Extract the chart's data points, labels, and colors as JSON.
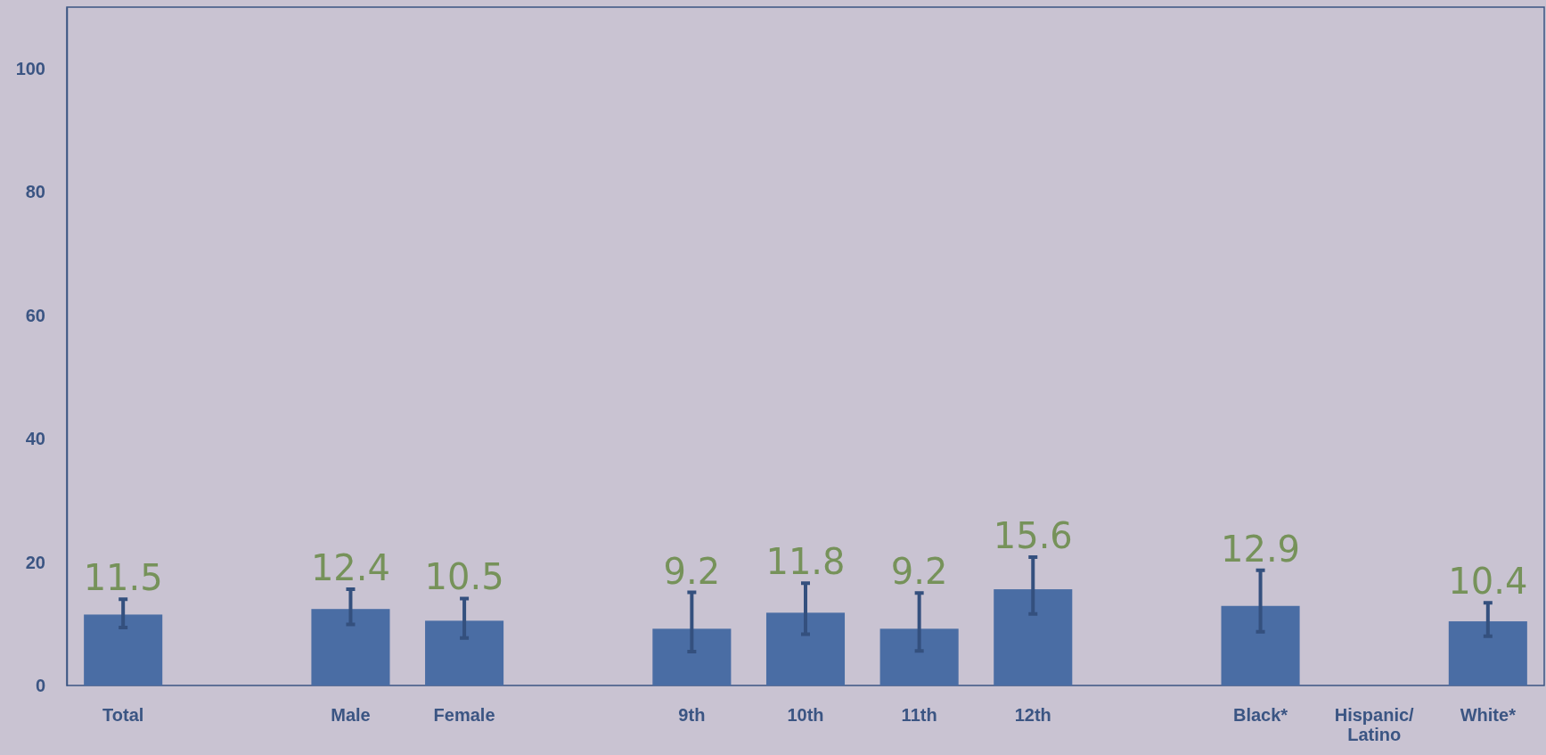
{
  "chart_data": {
    "type": "bar",
    "categories": [
      "Total",
      null,
      "Male",
      "Female",
      null,
      "9th",
      "10th",
      "11th",
      "12th",
      null,
      "Black*",
      "Hispanic/\nLatino",
      "White*"
    ],
    "values": [
      11.5,
      null,
      12.4,
      10.5,
      null,
      9.2,
      11.8,
      9.2,
      15.6,
      null,
      12.9,
      null,
      10.4
    ],
    "errors": [
      [
        9.4,
        14.0
      ],
      null,
      [
        9.9,
        15.6
      ],
      [
        7.7,
        14.1
      ],
      null,
      [
        5.5,
        15.1
      ],
      [
        8.3,
        16.6
      ],
      [
        5.6,
        15.0
      ],
      [
        11.6,
        20.8
      ],
      null,
      [
        8.7,
        18.7
      ],
      null,
      [
        8.0,
        13.4
      ]
    ],
    "color": "#4a6da4",
    "data_labels": true,
    "ylim": [
      0,
      110
    ],
    "yticks": [
      0,
      20,
      40,
      60,
      80,
      100
    ],
    "grid": false
  }
}
